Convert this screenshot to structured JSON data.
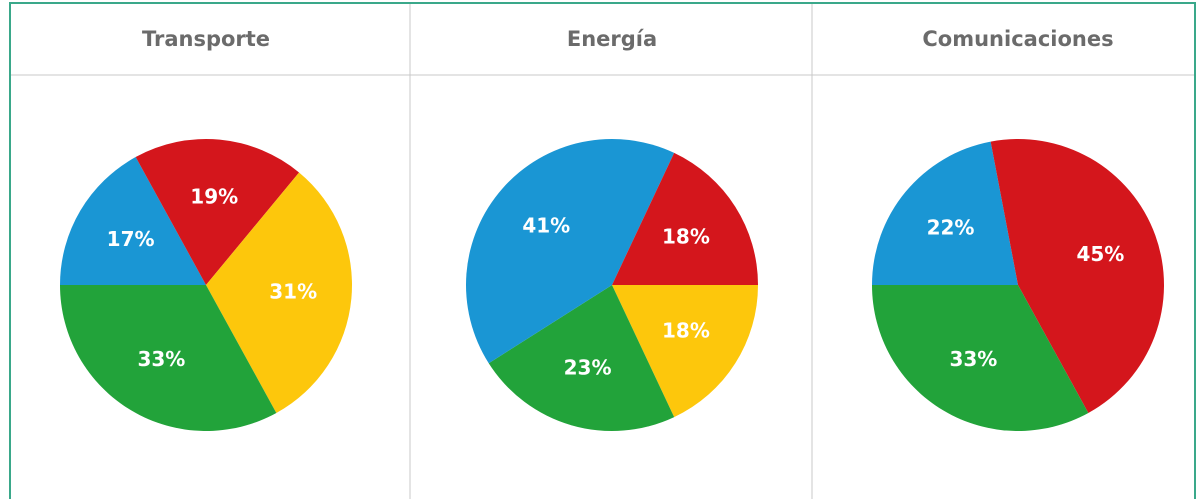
{
  "chart_data": [
    {
      "type": "pie",
      "title": "Transporte",
      "values": [
        17,
        19,
        31,
        33
      ],
      "value_labels": [
        "17%",
        "19%",
        "31%",
        "33%"
      ],
      "colors": [
        "#1a96d4",
        "#d4161c",
        "#fdc70c",
        "#22a33a"
      ]
    },
    {
      "type": "pie",
      "title": "Energía",
      "values": [
        18,
        23,
        41,
        18
      ],
      "value_labels": [
        "18%",
        "23%",
        "41%",
        "18%"
      ],
      "colors": [
        "#fdc70c",
        "#22a33a",
        "#1a96d4",
        "#d4161c"
      ]
    },
    {
      "type": "pie",
      "title": "Comunicaciones",
      "values": [
        22,
        45,
        33
      ],
      "value_labels": [
        "22%",
        "45%",
        "33%"
      ],
      "colors": [
        "#1a96d4",
        "#d4161c",
        "#22a33a"
      ]
    }
  ]
}
